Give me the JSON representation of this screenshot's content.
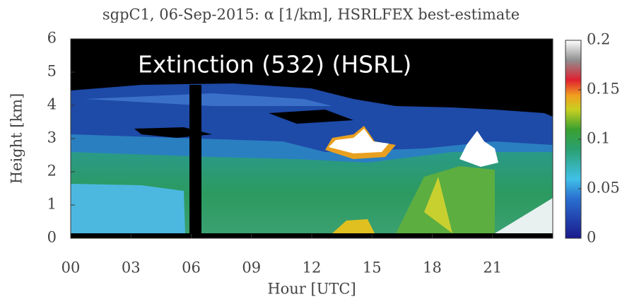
{
  "chart_data": {
    "type": "heatmap",
    "title": "sgpC1, 06-Sep-2015: α [1/km], HSRLFEX best-estimate",
    "annotation": "Extinction (532) (HSRL)",
    "xlabel": "Hour [UTC]",
    "ylabel": "Height [km]",
    "xlim": [
      0,
      24
    ],
    "ylim": [
      0,
      6
    ],
    "xticks": [
      {
        "value": 0,
        "label": "00"
      },
      {
        "value": 3,
        "label": "03"
      },
      {
        "value": 6,
        "label": "06"
      },
      {
        "value": 9,
        "label": "09"
      },
      12,
      15,
      18,
      21
    ],
    "yticks": [
      0,
      1,
      2,
      3,
      4,
      5,
      6
    ],
    "clim": [
      0,
      0.2
    ],
    "cticks": [
      0,
      0.05,
      0.1,
      0.15,
      0.2
    ]
  }
}
